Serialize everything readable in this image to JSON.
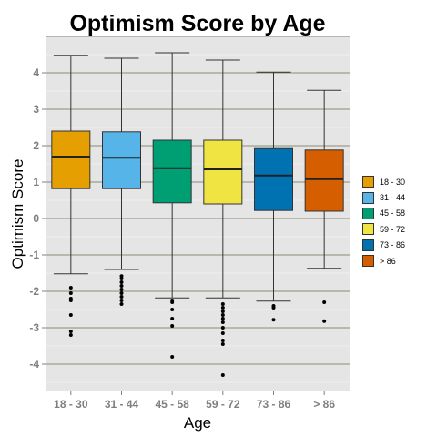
{
  "chart_data": {
    "type": "box",
    "title": "Optimism Score by Age",
    "xlabel": "Age",
    "ylabel": "Optimism Score",
    "ylim": [
      -4.75,
      5.0
    ],
    "yticks": [
      -4,
      -3,
      -2,
      -1,
      0,
      1,
      2,
      3,
      4
    ],
    "grid": true,
    "legend_position": "right",
    "categories": [
      "18 - 30",
      "31 - 44",
      "45 - 58",
      "59 - 72",
      "73 - 86",
      "> 86"
    ],
    "colors": [
      "#E69F00",
      "#56B4E9",
      "#009E73",
      "#F0E442",
      "#0072B2",
      "#D55E00"
    ],
    "boxes": [
      {
        "whisker_low": -1.52,
        "q1": 0.82,
        "median": 1.7,
        "q3": 2.4,
        "whisker_high": 4.48,
        "outliers": [
          -1.9,
          -2.05,
          -2.2,
          -2.25,
          -2.65,
          -3.1,
          -3.2
        ]
      },
      {
        "whisker_low": -1.4,
        "q1": 0.82,
        "median": 1.67,
        "q3": 2.38,
        "whisker_high": 4.4,
        "outliers": [
          -1.58,
          -1.65,
          -1.75,
          -1.85,
          -1.95,
          -2.05,
          -2.15,
          -2.25,
          -2.35
        ]
      },
      {
        "whisker_low": -2.18,
        "q1": 0.43,
        "median": 1.38,
        "q3": 2.15,
        "whisker_high": 4.55,
        "outliers": [
          -2.25,
          -2.3,
          -2.5,
          -2.75,
          -2.95,
          -3.8
        ]
      },
      {
        "whisker_low": -2.18,
        "q1": 0.4,
        "median": 1.35,
        "q3": 2.15,
        "whisker_high": 4.35,
        "outliers": [
          -2.35,
          -2.45,
          -2.55,
          -2.65,
          -2.75,
          -2.85,
          -3.0,
          -3.15,
          -3.35,
          -3.45,
          -4.3
        ]
      },
      {
        "whisker_low": -2.27,
        "q1": 0.22,
        "median": 1.18,
        "q3": 1.92,
        "whisker_high": 4.02,
        "outliers": [
          -2.4,
          -2.45,
          -2.78
        ]
      },
      {
        "whisker_low": -1.37,
        "q1": 0.2,
        "median": 1.08,
        "q3": 1.88,
        "whisker_high": 3.52,
        "outliers": [
          -2.3,
          -2.82
        ]
      }
    ]
  }
}
